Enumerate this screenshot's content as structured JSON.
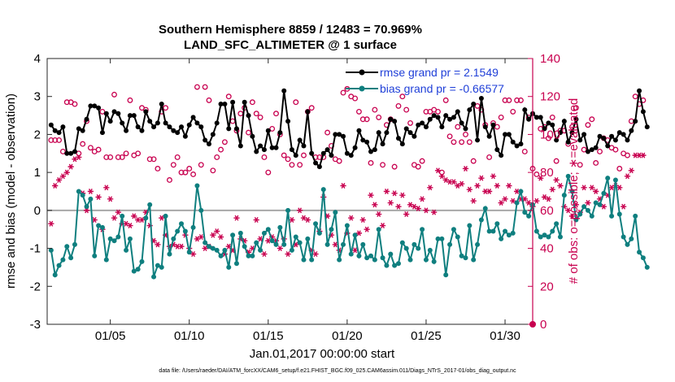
{
  "chart_data": {
    "type": "line",
    "title": [
      "Southern Hemisphere 8859 / 12483 = 70.969%",
      "LAND_SFC_ALTIMETER @ 1 surface"
    ],
    "xlabel": "Jan.01,2017 00:00:00 start",
    "ylabel": "rmse and bias (model - observation)",
    "y2label": "# of obs: o=possible; ∗=evaluated",
    "footnote": "data file: /Users/raeder/DAI/ATM_forcXX/CAM6_setup/f.e21.FHIST_BGC.f09_025.CAM6assim.011/Diags_NTrS_2017-01/obs_diag_output.nc",
    "xlim": [
      1,
      31.75
    ],
    "ylim": [
      -3,
      4
    ],
    "y2lim": [
      0,
      140
    ],
    "x_start": 1.25,
    "x_step": 0.25,
    "xticks": [
      5,
      10,
      15,
      20,
      25,
      30
    ],
    "xtick_labels": [
      "01/05",
      "01/10",
      "01/15",
      "01/20",
      "01/25",
      "01/30"
    ],
    "yticks": [
      -3,
      -2,
      -1,
      0,
      1,
      2,
      3,
      4
    ],
    "y2ticks": [
      0,
      20,
      40,
      60,
      80,
      100,
      120,
      140
    ],
    "series": [
      {
        "name": "rmse grand pr = 2.1549",
        "color": "#000000",
        "marker": "dot",
        "values": [
          2.25,
          2.1,
          2.05,
          2.2,
          1.5,
          1.5,
          1.55,
          2.15,
          2.1,
          2.4,
          2.75,
          2.75,
          2.7,
          2.05,
          2.55,
          2.35,
          2.6,
          2.55,
          2.3,
          2.1,
          2.5,
          2.5,
          2.2,
          2.1,
          2.6,
          2.35,
          2.2,
          2.3,
          2.8,
          2.3,
          2.2,
          2.1,
          2.05,
          2.2,
          1.95,
          2.25,
          2.45,
          2.3,
          2.2,
          1.85,
          1.75,
          2.0,
          2.3,
          2.8,
          2.8,
          2.15,
          2.85,
          2.15,
          1.7,
          2.85,
          2.5,
          1.95,
          1.55,
          1.7,
          1.6,
          2.1,
          1.65,
          1.65,
          2.05,
          3.15,
          2.35,
          1.6,
          1.45,
          1.85,
          1.7,
          2.6,
          1.5,
          1.25,
          1.15,
          1.5,
          1.6,
          1.45,
          2.0,
          2.0,
          1.95,
          1.5,
          1.45,
          1.65,
          2.1,
          1.85,
          1.8,
          1.55,
          1.6,
          2.05,
          1.75,
          2.05,
          2.4,
          2.35,
          1.9,
          1.75,
          2.15,
          2.05,
          1.95,
          2.25,
          2.3,
          2.2,
          2.4,
          2.5,
          2.45,
          2.2,
          2.5,
          2.4,
          2.45,
          2.6,
          2.3,
          2.15,
          2.65,
          2.8,
          1.85,
          2.95,
          2.2,
          1.95,
          2.25,
          1.6,
          1.45,
          2.0,
          2.0,
          1.8,
          1.7,
          1.75,
          2.65,
          2.4,
          2.55,
          2.45,
          2.45,
          2.15,
          2.3,
          2.25,
          1.85,
          2.05,
          2.35,
          1.8,
          2.05,
          2.4,
          1.85,
          2.0,
          1.55,
          1.6,
          1.65,
          1.95,
          1.9,
          1.7,
          1.95,
          1.85,
          2.05,
          2.0,
          1.85,
          2.1,
          2.35,
          3.15,
          2.6,
          2.2
        ]
      },
      {
        "name": "bias grand pr = -0.66577",
        "color": "#0f7f7f",
        "marker": "dot",
        "values": [
          -1.05,
          -1.7,
          -1.45,
          -1.3,
          -0.95,
          -1.25,
          -0.9,
          0.5,
          0.4,
          0.1,
          0.3,
          -1.2,
          -0.4,
          -0.45,
          -1.3,
          -0.75,
          -0.8,
          -0.7,
          -0.15,
          -1.05,
          -0.75,
          -1.6,
          -1.55,
          -1.35,
          -0.2,
          0.15,
          -1.75,
          -1.45,
          -1.5,
          -0.15,
          -1.15,
          -0.75,
          -0.55,
          -0.35,
          -0.55,
          -1.1,
          -0.45,
          0.65,
          0.0,
          -0.85,
          -0.95,
          -1.0,
          -1.05,
          -1.2,
          -1.05,
          -1.5,
          -0.65,
          -1.4,
          -0.6,
          -0.95,
          -1.2,
          -1.2,
          -0.85,
          -1.05,
          -0.6,
          -0.5,
          -0.8,
          -0.9,
          -0.45,
          -0.9,
          0.0,
          -1.05,
          -0.7,
          -0.85,
          -1.3,
          -0.75,
          -1.3,
          -0.35,
          -0.6,
          0.55,
          -0.9,
          -0.5,
          -0.05,
          -1.3,
          -0.9,
          -0.4,
          -1.15,
          -0.65,
          -1.2,
          -0.9,
          -1.25,
          -1.2,
          -1.3,
          -0.5,
          -1.25,
          -1.45,
          -1.15,
          -1.45,
          -1.4,
          -0.85,
          -1.0,
          -1.3,
          -0.9,
          -1.0,
          -0.5,
          -1.3,
          -1.05,
          -1.35,
          -0.75,
          -0.75,
          -1.7,
          -0.9,
          -0.5,
          -0.7,
          -1.2,
          -1.25,
          -0.4,
          -1.3,
          -0.9,
          -0.25,
          0.05,
          -0.55,
          -0.55,
          -0.35,
          -0.75,
          -0.55,
          -0.65,
          -0.6,
          0.2,
          0.5,
          -0.05,
          -0.15,
          0.15,
          -0.55,
          -0.7,
          -0.65,
          -0.7,
          -0.55,
          -0.35,
          -0.7,
          0.4,
          0.9,
          0.5,
          -0.25,
          -0.1,
          0.1,
          0.0,
          -0.15,
          0.2,
          0.15,
          0.45,
          0.85,
          -0.15,
          0.8,
          -0.1,
          -0.7,
          -0.9,
          -0.75,
          -0.15,
          -1.1,
          -1.25,
          -1.5
        ]
      },
      {
        "name": "# possible",
        "color": "#c8004f",
        "marker": "open-circle",
        "axis": "right",
        "values": [
          97,
          97,
          97,
          91,
          117,
          117,
          116,
          90,
          95,
          107,
          93,
          91,
          92,
          112,
          88,
          88,
          121,
          88,
          88,
          90,
          118,
          89,
          90,
          114,
          113,
          87,
          87,
          82,
          112,
          114,
          76,
          84,
          88,
          80,
          80,
          82,
          79,
          125,
          84,
          125,
          118,
          81,
          88,
          92,
          96,
          120,
          107,
          102,
          111,
          114,
          101,
          117,
          111,
          109,
          88,
          80,
          103,
          111,
          100,
          89,
          87,
          84,
          117,
          84,
          89,
          112,
          114,
          88,
          88,
          88,
          101,
          94,
          87,
          86,
          122,
          124,
          120,
          119,
          112,
          108,
          108,
          85,
          113,
          109,
          84,
          105,
          108,
          83,
          115,
          120,
          113,
          106,
          84,
          83,
          86,
          112,
          112,
          113,
          112,
          80,
          118,
          99,
          96,
          104,
          96,
          100,
          96,
          86,
          115,
          113,
          105,
          88,
          106,
          104,
          109,
          118,
          118,
          112,
          118,
          118,
          91,
          109,
          82,
          79,
          103,
          104,
          98,
          109,
          86,
          102,
          102,
          95,
          104,
          114,
          84,
          92,
          105,
          108,
          85,
          91,
          98,
          97,
          93,
          92,
          82,
          90,
          89,
          107,
          120,
          116,
          118
        ]
      },
      {
        "name": "# evaluated",
        "color": "#c8004f",
        "marker": "asterisk",
        "axis": "right",
        "values": [
          53,
          73,
          76,
          78,
          80,
          83,
          87,
          88,
          69,
          60,
          70,
          55,
          67,
          50,
          72,
          66,
          56,
          59,
          53,
          53,
          52,
          57,
          55,
          55,
          59,
          52,
          44,
          42,
          56,
          47,
          41,
          42,
          41,
          41,
          47,
          40,
          37,
          45,
          46,
          40,
          41,
          47,
          49,
          46,
          37,
          41,
          39,
          56,
          45,
          44,
          38,
          40,
          55,
          45,
          37,
          44,
          46,
          44,
          40,
          45,
          37,
          55,
          42,
          60,
          56,
          55,
          39,
          37,
          49,
          67,
          57,
          47,
          42,
          39,
          73,
          48,
          56,
          39,
          48,
          55,
          50,
          68,
          63,
          58,
          52,
          70,
          64,
          69,
          62,
          68,
          58,
          63,
          62,
          61,
          66,
          60,
          72,
          59,
          81,
          78,
          76,
          75,
          75,
          73,
          74,
          82,
          71,
          65,
          73,
          77,
          70,
          70,
          78,
          73,
          64,
          66,
          73,
          65,
          70,
          66,
          66,
          64,
          62,
          65,
          77,
          67,
          66,
          71,
          76,
          73,
          62,
          60,
          57,
          63,
          59,
          72,
          64,
          72,
          70,
          66,
          62,
          68,
          72,
          73,
          72,
          62,
          78,
          81,
          89,
          89,
          89
        ]
      }
    ],
    "zero_line": true
  }
}
